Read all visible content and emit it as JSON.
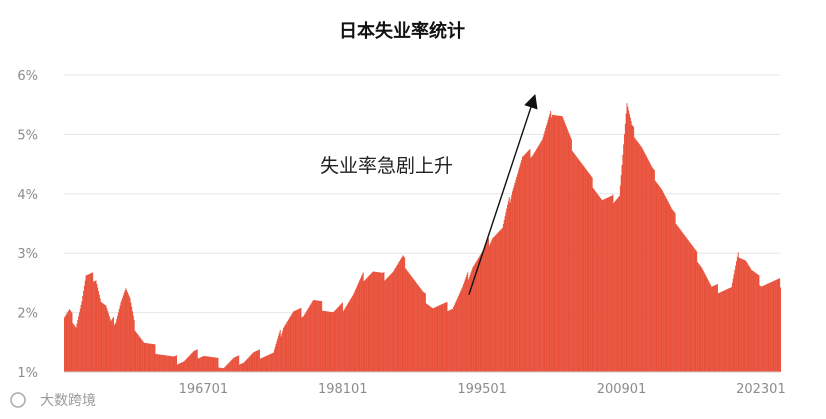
{
  "chart_data": {
    "type": "bar",
    "title": "日本失业率统计",
    "xlabel": "",
    "ylabel": "",
    "ylim": [
      1,
      6
    ],
    "yticks": [
      "1%",
      "2%",
      "3%",
      "4%",
      "5%",
      "6%"
    ],
    "xticks": [
      "196701",
      "198101",
      "199501",
      "200901",
      "202301"
    ],
    "grid": true,
    "bar_color": "#e8503a",
    "annotation": "失业率急剧上升",
    "annotation_arrow": {
      "from": [
        "1993-09",
        2.3
      ],
      "to": [
        "2000-04",
        5.5
      ]
    },
    "watermark": "大数跨境",
    "series_anchors": [
      [
        "1953-01",
        1.9
      ],
      [
        "1953-07",
        2.0
      ],
      [
        "1954-03",
        1.8
      ],
      [
        "1954-10",
        2.2
      ],
      [
        "1955-03",
        2.6
      ],
      [
        "1955-09",
        2.6
      ],
      [
        "1956-03",
        2.6
      ],
      [
        "1956-09",
        2.2
      ],
      [
        "1957-03",
        2.1
      ],
      [
        "1957-09",
        1.8
      ],
      [
        "1958-03",
        1.9
      ],
      [
        "1958-09",
        2.2
      ],
      [
        "1959-03",
        2.4
      ],
      [
        "1959-08",
        2.2
      ],
      [
        "1960-01",
        1.8
      ],
      [
        "1961-01",
        1.5
      ],
      [
        "1962-01",
        1.4
      ],
      [
        "1963-01",
        1.3
      ],
      [
        "1964-01",
        1.2
      ],
      [
        "1965-01",
        1.2
      ],
      [
        "1966-01",
        1.3
      ],
      [
        "1967-01",
        1.3
      ],
      [
        "1968-01",
        1.2
      ],
      [
        "1969-01",
        1.1
      ],
      [
        "1970-01",
        1.2
      ],
      [
        "1971-01",
        1.2
      ],
      [
        "1972-01",
        1.3
      ],
      [
        "1973-01",
        1.3
      ],
      [
        "1974-01",
        1.3
      ],
      [
        "1975-01",
        1.8
      ],
      [
        "1976-01",
        2.0
      ],
      [
        "1977-01",
        2.0
      ],
      [
        "1978-01",
        2.2
      ],
      [
        "1979-01",
        2.1
      ],
      [
        "1980-01",
        2.0
      ],
      [
        "1981-01",
        2.1
      ],
      [
        "1982-01",
        2.3
      ],
      [
        "1983-01",
        2.6
      ],
      [
        "1984-01",
        2.7
      ],
      [
        "1985-01",
        2.6
      ],
      [
        "1986-01",
        2.7
      ],
      [
        "1987-01",
        2.9
      ],
      [
        "1988-01",
        2.6
      ],
      [
        "1989-01",
        2.3
      ],
      [
        "1990-01",
        2.1
      ],
      [
        "1991-01",
        2.1
      ],
      [
        "1992-01",
        2.1
      ],
      [
        "1993-01",
        2.4
      ],
      [
        "1994-01",
        2.8
      ],
      [
        "1995-01",
        3.0
      ],
      [
        "1996-01",
        3.3
      ],
      [
        "1997-01",
        3.4
      ],
      [
        "1998-01",
        4.1
      ],
      [
        "1999-01",
        4.6
      ],
      [
        "2000-01",
        4.7
      ],
      [
        "2001-01",
        4.9
      ],
      [
        "2002-01",
        5.4
      ],
      [
        "2003-01",
        5.3
      ],
      [
        "2004-01",
        4.8
      ],
      [
        "2005-01",
        4.5
      ],
      [
        "2006-01",
        4.2
      ],
      [
        "2007-01",
        3.9
      ],
      [
        "2008-01",
        3.9
      ],
      [
        "2008-10",
        4.0
      ],
      [
        "2009-07",
        5.5
      ],
      [
        "2010-01",
        5.1
      ],
      [
        "2011-01",
        4.8
      ],
      [
        "2012-01",
        4.4
      ],
      [
        "2013-01",
        4.1
      ],
      [
        "2014-01",
        3.7
      ],
      [
        "2015-01",
        3.4
      ],
      [
        "2016-01",
        3.1
      ],
      [
        "2017-01",
        2.8
      ],
      [
        "2018-01",
        2.4
      ],
      [
        "2019-01",
        2.4
      ],
      [
        "2020-01",
        2.4
      ],
      [
        "2020-10",
        3.0
      ],
      [
        "2021-06",
        2.9
      ],
      [
        "2022-01",
        2.7
      ],
      [
        "2023-01",
        2.5
      ],
      [
        "2024-01",
        2.5
      ],
      [
        "2024-12",
        2.5
      ]
    ]
  }
}
